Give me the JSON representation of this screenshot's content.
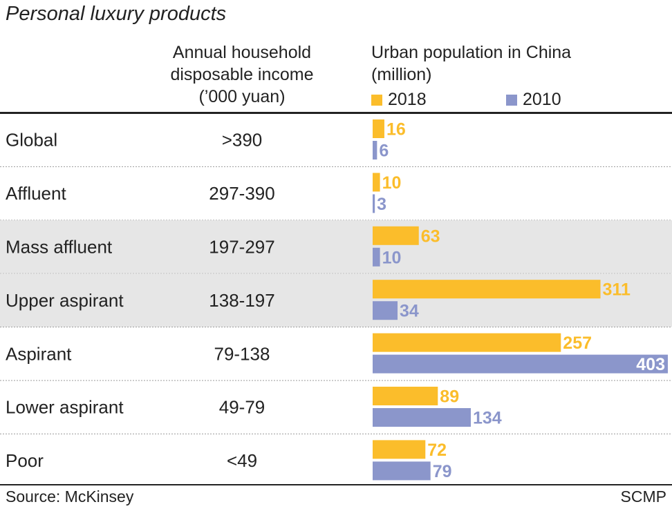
{
  "title": "Personal luxury products",
  "columns": {
    "income_header": "Annual household disposable income (’000 yuan)",
    "population_header": "Urban population in China (million)"
  },
  "source": "Source: McKinsey",
  "credit": "SCMP",
  "colors": {
    "series_2018": "#fbbd2b",
    "series_2010": "#8b96cb",
    "row_highlight": "#e6e6e6",
    "divider": "#9a9a9a",
    "text": "#222222"
  },
  "chart_data": {
    "type": "bar",
    "orientation": "horizontal",
    "categories": [
      "Global",
      "Affluent",
      "Mass affluent",
      "Upper aspirant",
      "Aspirant",
      "Lower aspirant",
      "Poor"
    ],
    "income_ranges": [
      ">390",
      "297-390",
      "197-297",
      "138-197",
      "79-138",
      "49-79",
      "<49"
    ],
    "highlighted_rows": [
      2,
      3
    ],
    "series": [
      {
        "name": "2018",
        "values": [
          16,
          10,
          63,
          311,
          257,
          89,
          72
        ]
      },
      {
        "name": "2010",
        "values": [
          6,
          3,
          10,
          34,
          403,
          134,
          79
        ]
      }
    ],
    "xlim": [
      0,
      403
    ],
    "legend_position": "top",
    "grid": false
  }
}
